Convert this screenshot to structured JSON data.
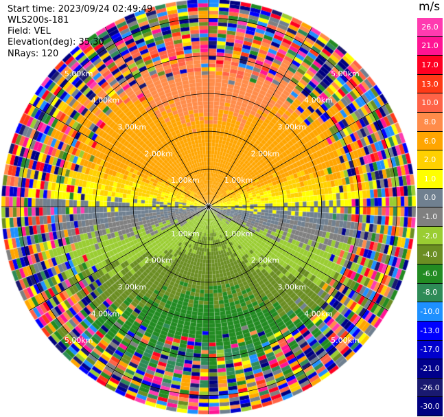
{
  "header": {
    "start_time": "Start time: 2023/09/24 02:49:49",
    "instrument": "WLS200s-181",
    "field": "Field: VEL",
    "elevation": "Elevation(deg): 35.30",
    "nrays": "NRays: 120"
  },
  "colorbar": {
    "unit": "m/s",
    "labels": [
      "26.0",
      "21.0",
      "17.0",
      "13.0",
      "10.0",
      "8.0",
      "6.0",
      "2.0",
      "1.0",
      "0.0",
      "-1.0",
      "-2.0",
      "-4.0",
      "-6.0",
      "-8.0",
      "-10.0",
      "-13.0",
      "-17.0",
      "-21.0",
      "-26.0",
      "-30.0"
    ],
    "colors": [
      "#ff3bb0",
      "#ff1493",
      "#ff0022",
      "#ff3a17",
      "#ff6347",
      "#ff8c4a",
      "#ffa500",
      "#ffd000",
      "#ffff00",
      "#708090",
      "#808080",
      "#9acd32",
      "#6b8e23",
      "#228b22",
      "#2e8b57",
      "#1e90ff",
      "#0000ff",
      "#0000cd",
      "#00008b",
      "#191970",
      "#000080"
    ]
  },
  "chart_data": {
    "type": "ppi",
    "field": "VEL",
    "units": "m/s",
    "nrays": 120,
    "elevation_deg": 35.3,
    "range_rings_km": [
      1.0,
      2.0,
      3.0,
      4.0,
      5.0
    ],
    "ring_labels": [
      "1.00km",
      "2.00km",
      "3.00km",
      "4.00km",
      "5.00km"
    ],
    "max_range_km": 5.5,
    "azimuth_lines_deg": [
      0,
      30,
      60,
      90,
      120,
      150,
      180,
      210,
      240,
      270,
      300,
      330
    ],
    "vmin": -30.0,
    "vmax": 30.0
  }
}
